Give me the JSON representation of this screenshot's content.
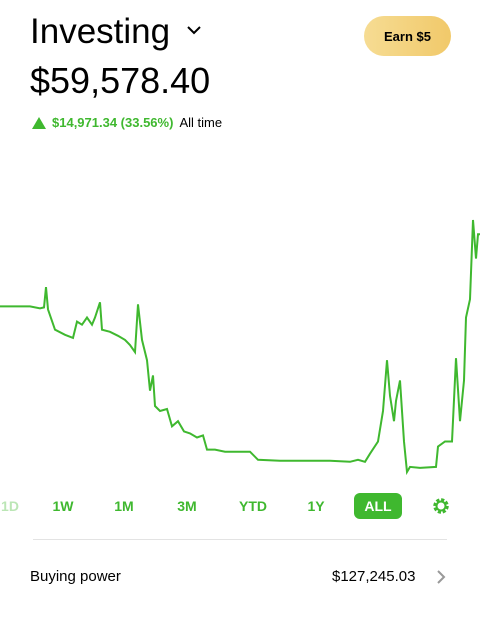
{
  "header": {
    "title": "Investing",
    "value": "$59,578.40",
    "earn": "Earn $5",
    "gain": "$14,971.34 (33.56%)",
    "gain_period": "All time"
  },
  "chart_data": {
    "type": "line",
    "color": "#3fb82f",
    "x": [
      0,
      30,
      40,
      44,
      46,
      48,
      55,
      65,
      73,
      77,
      82,
      87,
      92,
      95,
      100,
      102,
      110,
      118,
      125,
      130,
      135,
      138,
      142,
      147,
      150,
      153,
      155,
      160,
      167,
      172,
      178,
      184,
      190,
      197,
      203,
      207,
      215,
      225,
      240,
      250,
      258,
      280,
      300,
      330,
      350,
      358,
      365,
      370,
      378,
      383,
      387,
      390,
      394,
      396,
      400,
      404,
      407,
      410,
      420,
      436,
      438,
      445,
      452,
      456,
      460,
      464,
      466,
      470,
      473,
      476,
      478,
      480
    ],
    "values": [
      193,
      193,
      191,
      192,
      212,
      190,
      170,
      165,
      162,
      178,
      175,
      182,
      175,
      182,
      197,
      170,
      168,
      164,
      160,
      155,
      148,
      195,
      160,
      140,
      110,
      125,
      95,
      90,
      92,
      75,
      80,
      70,
      68,
      64,
      66,
      52,
      52,
      50,
      50,
      50,
      42,
      41,
      41,
      41,
      40,
      42,
      40,
      48,
      60,
      90,
      140,
      105,
      80,
      100,
      120,
      60,
      30,
      35,
      34,
      35,
      55,
      60,
      60,
      142,
      80,
      120,
      182,
      200,
      278,
      240,
      264,
      264
    ]
  },
  "timeframes": [
    "1D",
    "1W",
    "1M",
    "3M",
    "YTD",
    "1Y",
    "ALL"
  ],
  "buying_power": {
    "label": "Buying power",
    "value": "$127,245.03"
  }
}
